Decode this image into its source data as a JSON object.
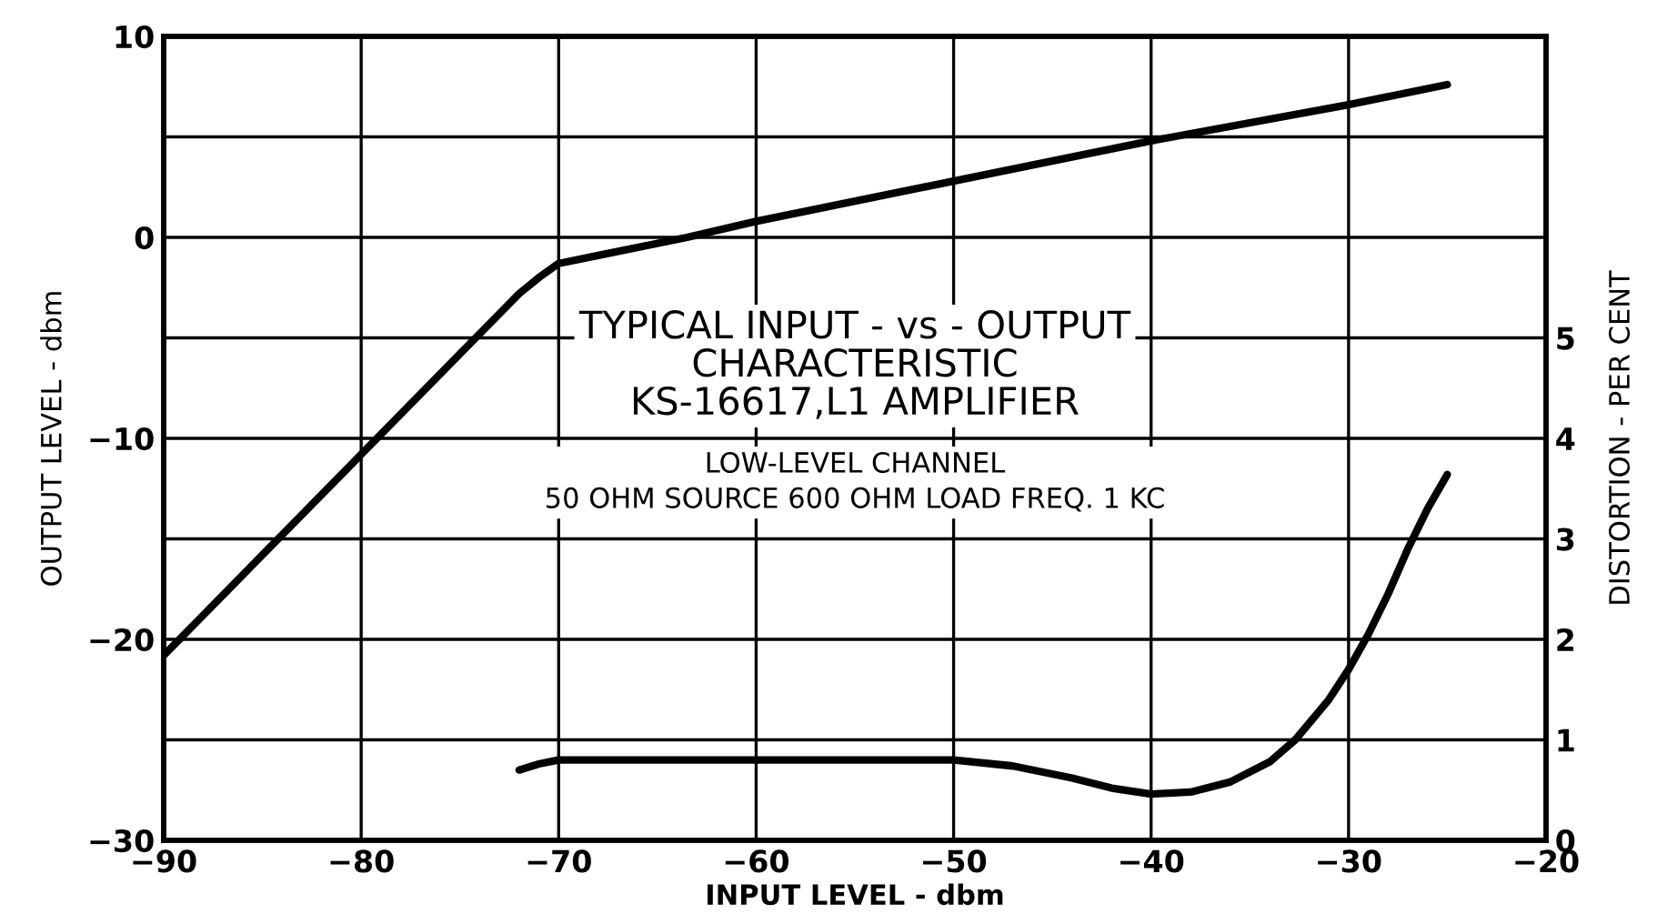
{
  "chart_data": {
    "type": "line",
    "title": "TYPICAL INPUT - vs - OUTPUT\nCHARACTERISTIC\nKS-16617,L1 AMPLIFIER",
    "subtitle": "LOW-LEVEL CHANNEL\n50 OHM SOURCE 600 OHM LOAD FREQ. 1 KC",
    "xlabel": "INPUT LEVEL - dbm",
    "ylabel": "OUTPUT LEVEL - dbm",
    "y2label": "DISTORTION - PER CENT",
    "series": [
      {
        "color": "#000000",
        "x": [
          -90,
          -85,
          -80,
          -75,
          -72,
          -71,
          -70,
          -68,
          -63.5,
          -60,
          -50,
          -40,
          -30,
          -25
        ],
        "values": [
          -20.8,
          -15.8,
          -10.8,
          -5.8,
          -2.8,
          -2,
          -1.3,
          -0.9,
          0,
          0.8,
          2.8,
          4.8,
          6.6,
          7.6
        ]
      },
      {
        "color": "#000000",
        "axis": "y2",
        "x": [
          -72,
          -71,
          -70,
          -65,
          -60,
          -55,
          -50,
          -47,
          -44,
          -42,
          -40,
          -38,
          -36,
          -34,
          -32.7,
          -31,
          -30,
          -29,
          -28,
          -27,
          -26,
          -25
        ],
        "values": [
          0.7,
          0.76,
          0.8,
          0.8,
          0.8,
          0.8,
          0.8,
          0.74,
          0.62,
          0.52,
          0.46,
          0.48,
          0.58,
          0.78,
          1.0,
          1.4,
          1.7,
          2.05,
          2.45,
          2.9,
          3.3,
          3.64
        ]
      }
    ],
    "xlim": [
      -90,
      -20
    ],
    "xticks": [
      -90,
      -80,
      -70,
      -60,
      -50,
      -40,
      -30,
      -20
    ],
    "ylim": [
      -30,
      10
    ],
    "yticks": [
      -30,
      {
        "value": -25,
        "label": null
      },
      -20,
      {
        "value": -15,
        "label": null
      },
      -10,
      {
        "value": -5,
        "label": null
      },
      0,
      {
        "value": 5,
        "label": null
      },
      10
    ],
    "y2lim": [
      0,
      8
    ],
    "y2ticks": [
      0,
      1,
      2,
      3,
      4,
      5
    ],
    "grid": true,
    "marker": "none",
    "line_style": "solid"
  }
}
